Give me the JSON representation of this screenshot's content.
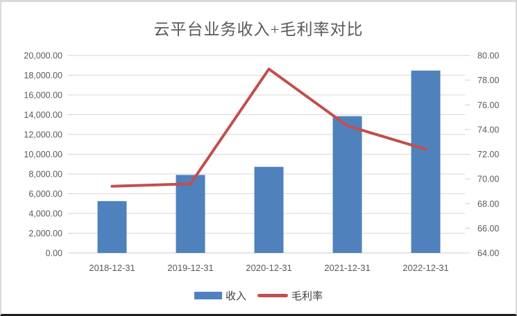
{
  "chart_data": {
    "type": "combo-bar-line",
    "title": "云平台业务收入+毛利率对比",
    "categories": [
      "2018-12-31",
      "2019-12-31",
      "2020-12-31",
      "2021-12-31",
      "2022-12-31"
    ],
    "series": [
      {
        "name": "收入",
        "type": "bar",
        "axis": "left",
        "color": "#4F81BD",
        "values": [
          5250,
          7900,
          8720,
          13850,
          18470
        ]
      },
      {
        "name": "毛利率",
        "type": "line",
        "axis": "right",
        "color": "#C0504D",
        "values": [
          69.4,
          69.6,
          78.9,
          74.3,
          72.4
        ]
      }
    ],
    "left_axis": {
      "min": 0,
      "max": 20000,
      "step": 2000,
      "tick_labels": [
        "20,000.00",
        "18,000.00",
        "16,000.00",
        "14,000.00",
        "12,000.00",
        "10,000.00",
        "8,000.00",
        "6,000.00",
        "4,000.00",
        "2,000.00",
        "0.00"
      ]
    },
    "right_axis": {
      "min": 64,
      "max": 80,
      "step": 2,
      "tick_labels": [
        "80.00",
        "78.00",
        "76.00",
        "74.00",
        "72.00",
        "70.00",
        "68.00",
        "66.00",
        "64.00"
      ]
    },
    "legend": {
      "position": "bottom",
      "items": [
        "收入",
        "毛利率"
      ]
    },
    "grid": true,
    "colors": {
      "grid": "#d9d9d9",
      "axis_line": "#c9c9c9",
      "tick": "#d0d0d0",
      "label": "#595959",
      "title": "#595959"
    }
  }
}
